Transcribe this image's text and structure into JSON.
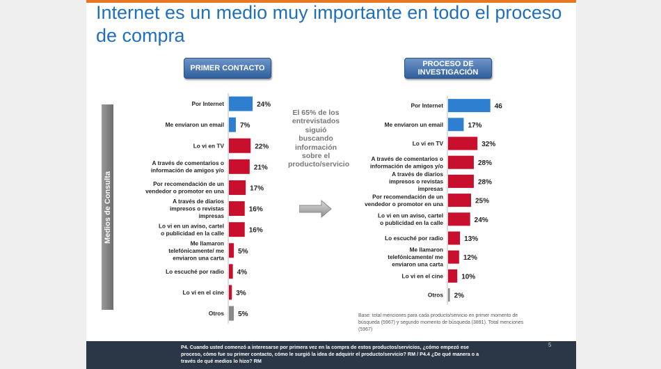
{
  "title": "Internet es un medio muy importante en todo el proceso de compra",
  "vertical_label": "Medios de Consulta",
  "middle_note": "El 65% de los entrevistados siguió buscando información sobre el producto/servicio",
  "base_note": "Base: total menciones para cada producto/servicio en primer momento de búsqueda (5967) y segundo momento de búsqueda (3891). Total menciones (5967)",
  "footer_text": "P4. Cuando usted comenzó a interesarse por primera vez en la compra de estos productos/servicios, ¿cómo empezó ese proceso, cómo fue su primer contacto, cómo le surgió la idea de adquirir el producto/servicio? RM / P4.4 ¿De qué manera o a través de qué medios lo hizo? RM",
  "page_number": "5",
  "colors": {
    "blue": "#2f7fd0",
    "red": "#c8102e",
    "gray": "#8a8a8a",
    "accent": "#e87722"
  },
  "chart_data": [
    {
      "type": "bar",
      "orientation": "horizontal",
      "title": "PRIMER CONTACTO",
      "categories": [
        "Por Internet",
        "Me enviaron un email",
        "Lo vi en TV",
        "A través de comentarios o información de amigos y/o",
        "Por recomendación de un vendedor o promotor en una",
        "A través de diarios impresos o revistas impresas",
        "Lo vi en un aviso, cartel o publicidad en la calle",
        "Me llamaron telefónicamente/ me enviaron una carta",
        "Lo escuché por radio",
        "Lo vi en el cine",
        "Otros"
      ],
      "values": [
        24,
        7,
        22,
        21,
        17,
        16,
        16,
        5,
        4,
        3,
        5
      ],
      "labels": [
        "24%",
        "7%",
        "22%",
        "21%",
        "17%",
        "16%",
        "16%",
        "5%",
        "4%",
        "3%",
        "5%"
      ],
      "colors": [
        "blue",
        "blue",
        "red",
        "red",
        "red",
        "red",
        "red",
        "red",
        "red",
        "red",
        "gray"
      ],
      "xlim": [
        0,
        50
      ]
    },
    {
      "type": "bar",
      "orientation": "horizontal",
      "title": "PROCESO DE INVESTIGACIÓN",
      "categories": [
        "Por Internet",
        "Me enviaron un email",
        "Lo vi en TV",
        "A través de comentarios o información de amigos y/o",
        "A través de diarios impresos o revistas impresas",
        "Por recomendación de un vendedor o promotor en una",
        "Lo vi en un aviso, cartel o publicidad en la calle",
        "Lo escuché por radio",
        "Me llamaron telefónicamente/ me enviaron una carta",
        "Lo vi en el cine",
        "Otros"
      ],
      "values": [
        46,
        17,
        32,
        28,
        28,
        25,
        24,
        13,
        12,
        10,
        2
      ],
      "labels": [
        "46%",
        "17%",
        "32%",
        "28%",
        "28%",
        "25%",
        "24%",
        "13%",
        "12%",
        "10%",
        "2%"
      ],
      "colors": [
        "blue",
        "blue",
        "red",
        "red",
        "red",
        "red",
        "red",
        "red",
        "red",
        "red",
        "gray"
      ],
      "xlim": [
        0,
        50
      ]
    }
  ]
}
